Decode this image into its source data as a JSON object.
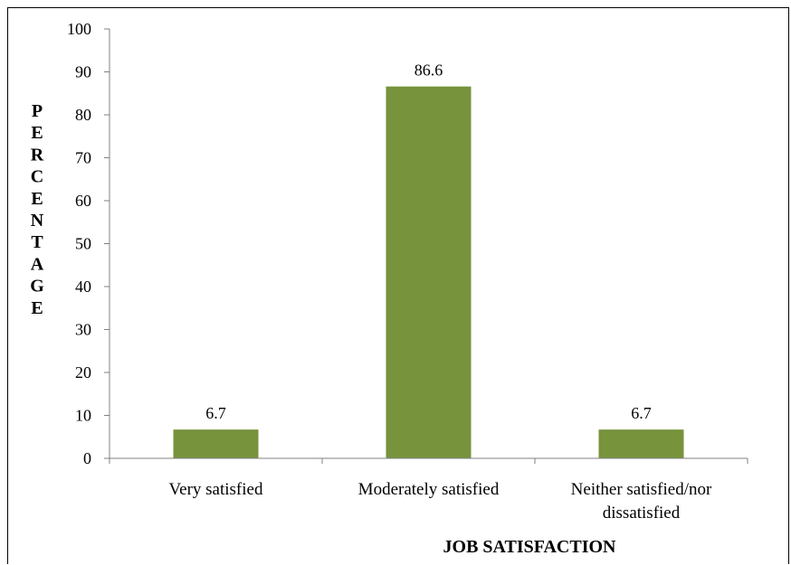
{
  "chart_data": {
    "type": "bar",
    "categories": [
      "Very satisfied",
      "Moderately satisfied",
      "Neither satisfied/nor dissatisfied"
    ],
    "category_lines": [
      [
        "Very satisfied"
      ],
      [
        "Moderately satisfied"
      ],
      [
        "Neither satisfied/nor",
        "dissatisfied"
      ]
    ],
    "values": [
      6.7,
      86.6,
      6.7
    ],
    "data_labels": [
      "6.7",
      "86.6",
      "6.7"
    ],
    "xlabel": "JOB SATISFACTION",
    "ylabel": "PERCENTAGE",
    "ylim": [
      0,
      100
    ],
    "yticks": [
      0,
      10,
      20,
      30,
      40,
      50,
      60,
      70,
      80,
      90,
      100
    ],
    "bar_color": "#77933c",
    "grid": false,
    "legend": "none"
  }
}
